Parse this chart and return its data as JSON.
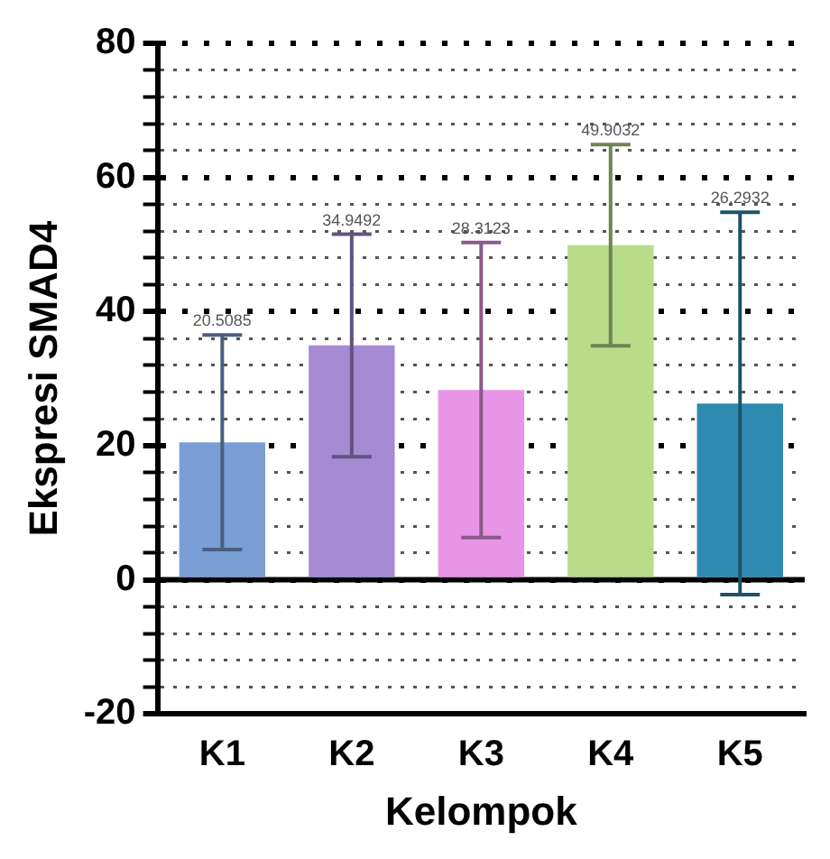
{
  "chart_data": {
    "type": "bar",
    "xlabel": "Kelompok",
    "ylabel": "Ekspresi SMAD4",
    "categories": [
      "K1",
      "K2",
      "K3",
      "K4",
      "K5"
    ],
    "values": [
      20.5085,
      34.9492,
      28.3123,
      49.9032,
      26.2932
    ],
    "annotations": [
      {
        "text": "20.5085",
        "x": "K1",
        "y": 36.5
      },
      {
        "text": "34.9492",
        "x": "K2",
        "y": 51.5
      },
      {
        "text": "28.3123",
        "x": "K3",
        "y": 50.3
      },
      {
        "text": "49.9032",
        "x": "K4",
        "y": 64.9
      },
      {
        "text": "26.2932",
        "x": "K5",
        "y": 54.8
      }
    ],
    "errors": [
      16,
      16.6,
      22,
      15,
      28.5
    ],
    "colors": [
      "#7a9fd6",
      "#a48bd3",
      "#e895e8",
      "#b8dc8a",
      "#2e8ab0"
    ],
    "ylim": [
      -20,
      80
    ],
    "yticks": [
      -20,
      {
        "value": -16,
        "label": null
      },
      {
        "value": -12,
        "label": null
      },
      {
        "value": -8,
        "label": null
      },
      {
        "value": -4,
        "label": null
      },
      0,
      {
        "value": 4,
        "label": null
      },
      {
        "value": 8,
        "label": null
      },
      {
        "value": 12,
        "label": null
      },
      {
        "value": 16,
        "label": null
      },
      20,
      {
        "value": 24,
        "label": null
      },
      {
        "value": 28,
        "label": null
      },
      {
        "value": 32,
        "label": null
      },
      {
        "value": 36,
        "label": null
      },
      40,
      {
        "value": 44,
        "label": null
      },
      {
        "value": 48,
        "label": null
      },
      {
        "value": 52,
        "label": null
      },
      {
        "value": 56,
        "label": null
      },
      60,
      {
        "value": 64,
        "label": null
      },
      {
        "value": 68,
        "label": null
      },
      {
        "value": 72,
        "label": null
      },
      {
        "value": 76,
        "label": null
      },
      80
    ],
    "grid": "y",
    "legend": false
  }
}
